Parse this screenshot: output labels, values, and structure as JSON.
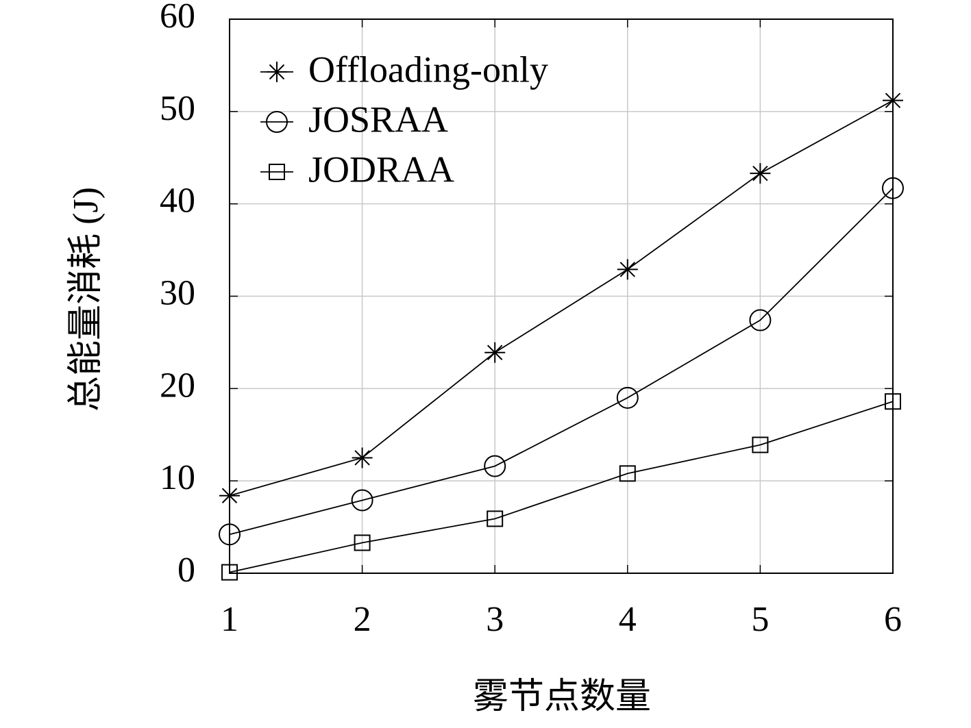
{
  "chart_data": {
    "type": "line",
    "x_label": "雾节点数量",
    "y_label": "总能量消耗 (J)",
    "x": [
      1,
      2,
      3,
      4,
      5,
      6
    ],
    "series": [
      {
        "name": "Offloading-only",
        "color": "#000000",
        "marker": "asterisk",
        "values": [
          8.4,
          12.5,
          23.9,
          32.9,
          43.3,
          51.2
        ]
      },
      {
        "name": "JOSRAA",
        "color": "#000000",
        "marker": "circle",
        "values": [
          4.2,
          7.9,
          11.6,
          19.0,
          27.4,
          41.7
        ]
      },
      {
        "name": "JODRAA",
        "color": "#000000",
        "marker": "square",
        "values": [
          0.1,
          3.3,
          5.9,
          10.8,
          13.9,
          18.6
        ]
      }
    ],
    "xlim": [
      1,
      6
    ],
    "xticks": [
      1,
      2,
      3,
      4,
      5,
      6
    ],
    "ylim": [
      0,
      60
    ],
    "yticks": [
      0,
      10,
      20,
      30,
      40,
      50,
      60
    ],
    "grid": true,
    "legend": "upper left"
  }
}
